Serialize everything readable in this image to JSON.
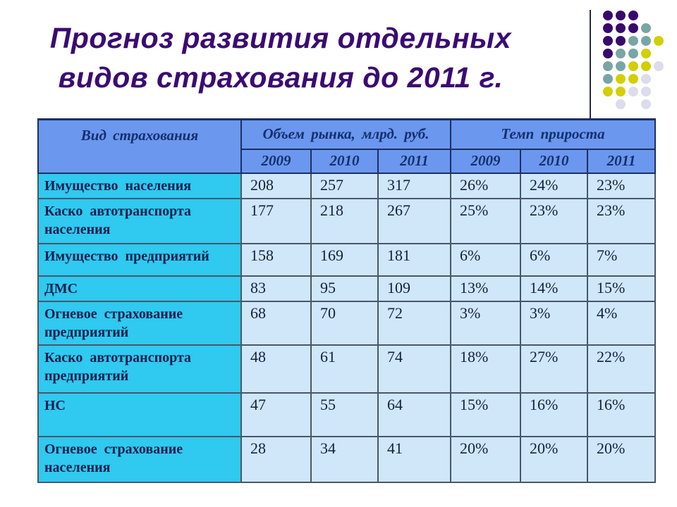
{
  "slide": {
    "title": {
      "line1": "Прогноз развития отдельных",
      "line2": "видов страхования до 2011 г."
    }
  },
  "colors": {
    "title_text": "#3b0b73",
    "header_fill": "#6b97ee",
    "label_fill": "#30c9ef",
    "cell_fill": "#cfe7f8",
    "header_text": "#13306e",
    "label_text": "#0c1f4e",
    "value_text": "#141f40",
    "line_color": "#26284a"
  },
  "decoration": {
    "dot_pattern": {
      "colors": {
        "P": "#380a6e",
        "T": "#7aa5a5",
        "Y": "#d3cf06",
        "L": "#dcdcec"
      },
      "grid": [
        [
          "P",
          "P",
          "P",
          "",
          ""
        ],
        [
          "P",
          "P",
          "P",
          "T",
          ""
        ],
        [
          "P",
          "P",
          "T",
          "T",
          "Y"
        ],
        [
          "P",
          "T",
          "T",
          "Y",
          ""
        ],
        [
          "T",
          "T",
          "Y",
          "Y",
          "L"
        ],
        [
          "T",
          "Y",
          "Y",
          "L",
          ""
        ],
        [
          "Y",
          "Y",
          "L",
          "L",
          ""
        ],
        [
          "",
          "L",
          "",
          "L",
          ""
        ]
      ]
    }
  },
  "table": {
    "corner_header": "Вид страхования",
    "group_headers": [
      "Объем рынка, млрд. руб.",
      "Темп прироста"
    ],
    "year_headers": [
      "2009",
      "2010",
      "2011",
      "2009",
      "2010",
      "2011"
    ],
    "rows": [
      {
        "label": "Имущество населения",
        "values": [
          "208",
          "257",
          "317",
          "26%",
          "24%",
          "23%"
        ]
      },
      {
        "label": "Каско автотранспорта населения",
        "values": [
          "177",
          "218",
          "267",
          "25%",
          "23%",
          "23%"
        ]
      },
      {
        "label": "Имущество предприятий",
        "values": [
          "158",
          "169",
          "181",
          "6%",
          "6%",
          "7%"
        ]
      },
      {
        "label": "ДМС",
        "values": [
          "83",
          "95",
          "109",
          "13%",
          "14%",
          "15%"
        ]
      },
      {
        "label": "Огневое страхование предприятий",
        "values": [
          "68",
          "70",
          "72",
          "3%",
          "3%",
          "4%"
        ]
      },
      {
        "label": "Каско автотранспорта предприятий",
        "values": [
          "48",
          "61",
          "74",
          "18%",
          "27%",
          "22%"
        ]
      },
      {
        "label": "НС",
        "values": [
          "47",
          "55",
          "64",
          "15%",
          "16%",
          "16%"
        ]
      },
      {
        "label": "Огневое страхование населения",
        "values": [
          "28",
          "34",
          "41",
          "20%",
          "20%",
          "20%"
        ]
      }
    ]
  }
}
